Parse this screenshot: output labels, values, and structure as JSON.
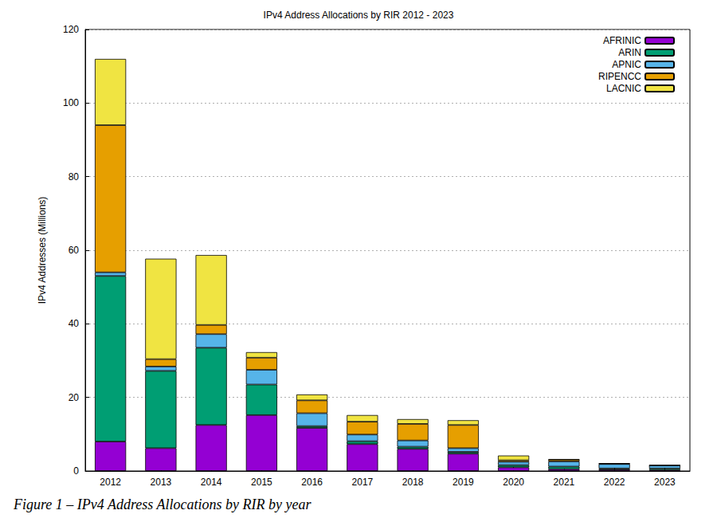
{
  "chart_data": {
    "type": "bar",
    "title": "IPv4 Address Allocations by RIR 2012 - 2023",
    "caption": "Figure 1 – IPv4 Address Allocations by RIR by year",
    "y_label": "IPv4 Addresses (Millions)",
    "categories": [
      "2012",
      "2013",
      "2014",
      "2015",
      "2016",
      "2017",
      "2018",
      "2019",
      "2020",
      "2021",
      "2022",
      "2023"
    ],
    "series": [
      {
        "name": "AFRINIC",
        "color": "#9400d3",
        "values": [
          8,
          6.2,
          12.5,
          15.2,
          11.7,
          7.3,
          6,
          4.7,
          1,
          0.5,
          0.4,
          0.3
        ]
      },
      {
        "name": "ARIN",
        "color": "#009e73",
        "values": [
          45,
          21,
          21,
          8.3,
          0.5,
          0.8,
          0.6,
          0.5,
          0.6,
          0.7,
          0.3,
          0.4
        ]
      },
      {
        "name": "APNIC",
        "color": "#56b4e9",
        "values": [
          1,
          1.2,
          3.7,
          4,
          3.5,
          1.8,
          1.7,
          1,
          0.9,
          1.4,
          1.2,
          0.8
        ]
      },
      {
        "name": "RIPENCC",
        "color": "#e69f00",
        "values": [
          40,
          2,
          2.5,
          3.3,
          3.5,
          3.5,
          4.5,
          6.3,
          0.4,
          0.5,
          0.1,
          0
        ]
      },
      {
        "name": "LACNIC",
        "color": "#f0e442",
        "values": [
          18,
          27.3,
          19,
          1.5,
          1.6,
          1.8,
          1.3,
          1.3,
          1.3,
          0.1,
          0.1,
          0.1
        ]
      }
    ],
    "ylim": [
      0,
      120
    ],
    "yticks": [
      0,
      20,
      40,
      60,
      80,
      100,
      120
    ],
    "stacked": true,
    "grid": true,
    "legend": "upper right"
  }
}
